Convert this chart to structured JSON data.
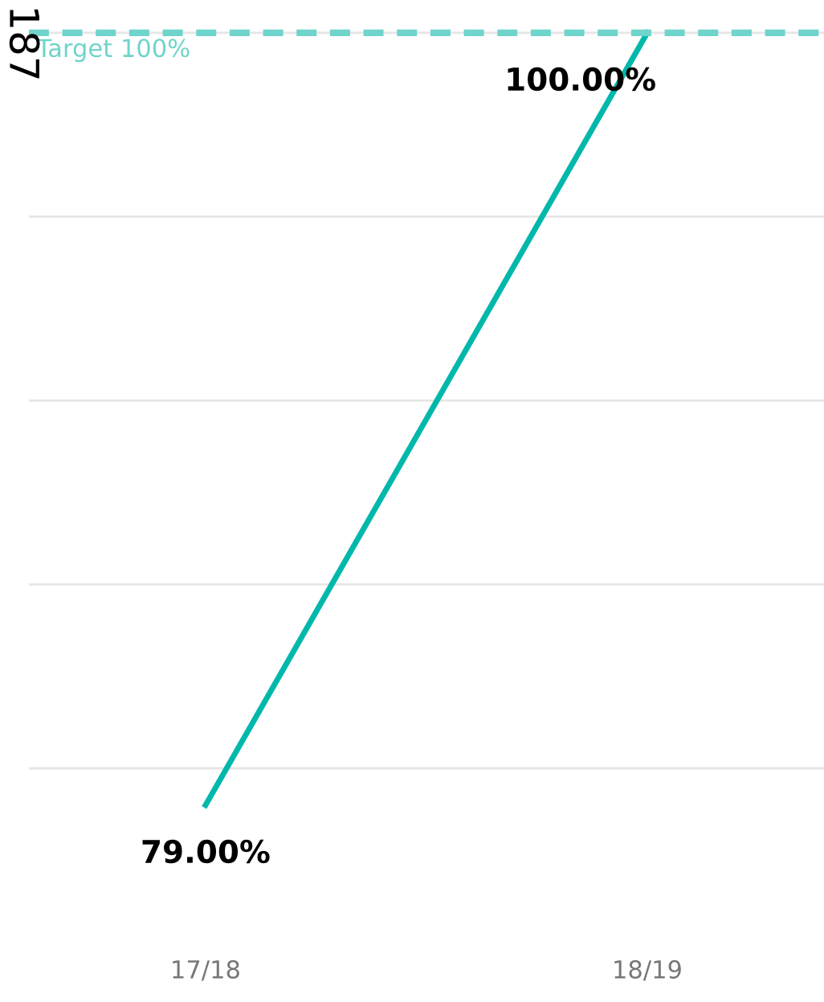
{
  "chart_data": {
    "type": "line",
    "categories": [
      "17/18",
      "18/19"
    ],
    "series": [
      {
        "color": "#01b8aa",
        "values": [
          79,
          100
        ],
        "value_labels": [
          "79.00%",
          "100.00%"
        ]
      }
    ],
    "grid": "y",
    "tick_labels": "x",
    "ref_lines": [
      {
        "axis": "y",
        "value": 100,
        "label": "Target 100%",
        "color": "#6fd4cb",
        "line_style": "dashed"
      }
    ],
    "annotations": [
      "187"
    ]
  }
}
